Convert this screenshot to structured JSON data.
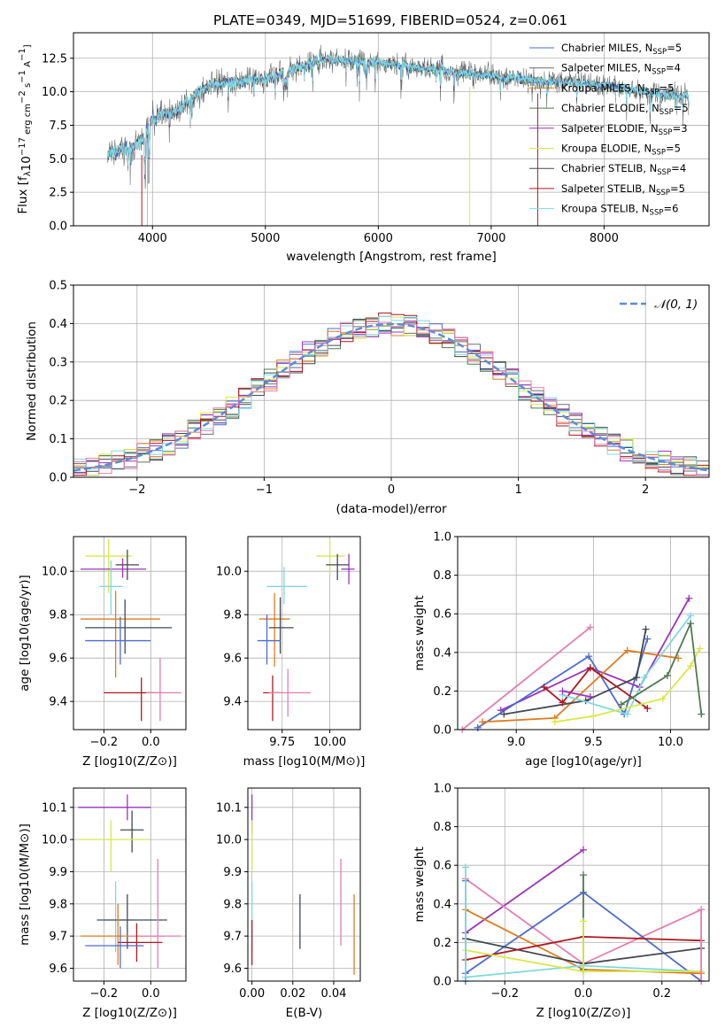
{
  "title": "PLATE=0349, MJD=51699, FIBERID=0524, z=0.061",
  "colors": {
    "Chabrier MILES": "#4c6bd0",
    "Salpeter MILES": "#6a6d70",
    "Kroupa MILES": "#e07b21",
    "Chabrier ELODIE": "#4f7a4f",
    "Salpeter ELODIE": "#9a34b8",
    "Kroupa ELODIE": "#d8e84a",
    "Chabrier STELIB": "#404a52",
    "Salpeter STELIB": "#b0171f",
    "Kroupa STELIB": "#7fd8e0",
    "pink": "#e27fb0",
    "gauss": "#5b8dd9"
  },
  "legend1": [
    {
      "name": "Chabrier MILES",
      "nssp": "5"
    },
    {
      "name": "Salpeter MILES",
      "nssp": "4"
    },
    {
      "name": "Kroupa MILES",
      "nssp": "5"
    },
    {
      "name": "Chabrier ELODIE",
      "nssp": "5"
    },
    {
      "name": "Salpeter ELODIE",
      "nssp": "3"
    },
    {
      "name": "Kroupa ELODIE",
      "nssp": "5"
    },
    {
      "name": "Chabrier STELIB",
      "nssp": "4"
    },
    {
      "name": "Salpeter STELIB",
      "nssp": "5"
    },
    {
      "name": "Kroupa STELIB",
      "nssp": "6"
    }
  ],
  "legend2": "𝒩(0, 1)",
  "chart_data": [
    {
      "type": "line",
      "id": "spectrum",
      "xlabel": "wavelength [Angstrom, rest frame]",
      "ylabel": "Flux [f_λ10^-17 erg cm^-2 s^-1 A^-1]",
      "xlim": [
        3300,
        8930
      ],
      "ylim": [
        0,
        14.4
      ],
      "xticks": [
        "4000",
        "5000",
        "6000",
        "7000",
        "8000"
      ],
      "yticks": [
        "0.0",
        "2.5",
        "5.0",
        "7.5",
        "10.0",
        "12.5"
      ],
      "continuum_anchors": [
        [
          3600,
          5.2
        ],
        [
          3900,
          6.2
        ],
        [
          4000,
          8.0
        ],
        [
          4200,
          8.5
        ],
        [
          4500,
          10.5
        ],
        [
          5000,
          11.0
        ],
        [
          5300,
          11.8
        ],
        [
          5500,
          12.4
        ],
        [
          6000,
          12.2
        ],
        [
          6500,
          11.6
        ],
        [
          7000,
          11.2
        ],
        [
          7500,
          10.8
        ],
        [
          8000,
          10.5
        ],
        [
          8500,
          9.8
        ],
        [
          8750,
          9.7
        ]
      ]
    },
    {
      "type": "area",
      "id": "residual-histogram",
      "xlabel": "(data-model)/error",
      "ylabel": "Normed distribution",
      "xlim": [
        -2.5,
        2.5
      ],
      "ylim": [
        0,
        0.5
      ],
      "xticks": [
        "−2",
        "−1",
        "0",
        "1",
        "2"
      ],
      "yticks": [
        "0.0",
        "0.1",
        "0.2",
        "0.3",
        "0.4",
        "0.5"
      ],
      "bin_width": 0.1,
      "series_name": "𝒩(0, 1)"
    },
    {
      "type": "scatter",
      "id": "age-vs-z",
      "xlabel": "Z [log10(Z/Z⊙)]",
      "ylabel": "age [log10(age/yr)]",
      "xlim": [
        -0.33,
        0.15
      ],
      "ylim": [
        9.27,
        10.16
      ],
      "xticks": [
        "−0.2",
        "0.0"
      ],
      "yticks": [
        "9.4",
        "9.6",
        "9.8",
        "10.0"
      ],
      "points": [
        {
          "c": "Kroupa ELODIE",
          "x": -0.18,
          "y": 10.07,
          "xl": -0.28,
          "xh": -0.08,
          "yl": 9.9,
          "yh": 10.15
        },
        {
          "c": "Salpeter ELODIE",
          "x": -0.12,
          "y": 10.01,
          "xl": -0.3,
          "xh": -0.02,
          "yl": 9.97,
          "yh": 10.06
        },
        {
          "c": "Chabrier STELIB",
          "x": -0.1,
          "y": 10.03,
          "xl": -0.15,
          "xh": -0.05,
          "yl": 9.96,
          "yh": 10.1
        },
        {
          "c": "Kroupa STELIB",
          "x": -0.17,
          "y": 9.93,
          "xl": -0.22,
          "xh": -0.12,
          "yl": 9.8,
          "yh": 10.05
        },
        {
          "c": "Kroupa MILES",
          "x": -0.15,
          "y": 9.78,
          "xl": -0.3,
          "xh": 0.04,
          "yl": 9.51,
          "yh": 9.91
        },
        {
          "c": "Chabrier STELIB",
          "x": -0.11,
          "y": 9.74,
          "xl": -0.28,
          "xh": 0.09,
          "yl": 9.62,
          "yh": 9.87
        },
        {
          "c": "Chabrier MILES",
          "x": -0.13,
          "y": 9.68,
          "xl": -0.28,
          "xh": 0.0,
          "yl": 9.57,
          "yh": 9.79
        },
        {
          "c": "Salpeter STELIB",
          "x": -0.04,
          "y": 9.44,
          "xl": -0.2,
          "xh": 0.05,
          "yl": 9.31,
          "yh": 9.51
        },
        {
          "c": "pink",
          "x": 0.04,
          "y": 9.44,
          "xl": -0.02,
          "xh": 0.13,
          "yl": 9.31,
          "yh": 9.6
        }
      ]
    },
    {
      "type": "scatter",
      "id": "age-vs-mass",
      "xlabel": "mass [log10(M/M⊙)]",
      "ylabel": "",
      "xlim": [
        9.57,
        10.16
      ],
      "ylim": [
        9.27,
        10.16
      ],
      "xticks": [
        "9.75",
        "10.00"
      ],
      "yticks": [
        "9.4",
        "9.6",
        "9.8",
        "10.0"
      ],
      "points": [
        {
          "c": "Kroupa ELODIE",
          "x": 10.0,
          "y": 10.07,
          "xl": 9.93,
          "xh": 10.08,
          "yl": 9.99,
          "yh": 10.15
        },
        {
          "c": "Salpeter ELODIE",
          "x": 10.1,
          "y": 10.01,
          "xl": 10.06,
          "xh": 10.13,
          "yl": 9.94,
          "yh": 10.08
        },
        {
          "c": "Chabrier STELIB",
          "x": 10.04,
          "y": 10.03,
          "xl": 9.98,
          "xh": 10.1,
          "yl": 9.96,
          "yh": 10.08
        },
        {
          "c": "Kroupa STELIB",
          "x": 9.76,
          "y": 9.93,
          "xl": 9.67,
          "xh": 9.88,
          "yl": 9.85,
          "yh": 10.02
        },
        {
          "c": "Kroupa MILES",
          "x": 9.71,
          "y": 9.78,
          "xl": 9.63,
          "xh": 9.79,
          "yl": 9.56,
          "yh": 9.9
        },
        {
          "c": "Chabrier STELIB",
          "x": 9.74,
          "y": 9.74,
          "xl": 9.68,
          "xh": 9.81,
          "yl": 9.62,
          "yh": 9.88
        },
        {
          "c": "Chabrier MILES",
          "x": 9.67,
          "y": 9.68,
          "xl": 9.62,
          "xh": 9.74,
          "yl": 9.57,
          "yh": 9.8
        },
        {
          "c": "Salpeter STELIB",
          "x": 9.7,
          "y": 9.44,
          "xl": 9.65,
          "xh": 9.75,
          "yl": 9.31,
          "yh": 9.52
        },
        {
          "c": "pink",
          "x": 9.78,
          "y": 9.44,
          "xl": 9.68,
          "xh": 9.9,
          "yl": 9.33,
          "yh": 9.55
        }
      ]
    },
    {
      "type": "line",
      "id": "massweight-vs-age",
      "xlabel": "age [log10(age/yr)]",
      "ylabel": "mass weight",
      "xlim": [
        8.62,
        10.25
      ],
      "ylim": [
        0,
        1.0
      ],
      "xticks": [
        "9.0",
        "9.5",
        "10.0"
      ],
      "yticks": [
        "0.0",
        "0.2",
        "0.4",
        "0.6",
        "0.8",
        "1.0"
      ],
      "series": [
        {
          "c": "pink",
          "x": [
            8.65,
            9.48
          ],
          "y": [
            0.0,
            0.53
          ]
        },
        {
          "c": "Salpeter ELODIE",
          "x": [
            8.9,
            9.48,
            9.8,
            10.12
          ],
          "y": [
            0.1,
            0.32,
            0.22,
            0.68
          ]
        },
        {
          "c": "Chabrier MILES",
          "x": [
            8.75,
            9.47,
            9.7,
            9.85
          ],
          "y": [
            0.01,
            0.38,
            0.08,
            0.47
          ]
        },
        {
          "c": "Kroupa MILES",
          "x": [
            8.78,
            9.25,
            9.72,
            10.05
          ],
          "y": [
            0.04,
            0.06,
            0.41,
            0.37
          ]
        },
        {
          "c": "Chabrier STELIB",
          "x": [
            8.92,
            9.45,
            9.78,
            9.84
          ],
          "y": [
            0.08,
            0.15,
            0.27,
            0.52
          ]
        },
        {
          "c": "Salpeter STELIB",
          "x": [
            9.18,
            9.3,
            9.48,
            9.85
          ],
          "y": [
            0.22,
            0.14,
            0.32,
            0.11
          ]
        },
        {
          "c": "Kroupa STELIB",
          "x": [
            9.3,
            9.72,
            9.83,
            10.13
          ],
          "y": [
            0.18,
            0.08,
            0.27,
            0.59
          ]
        },
        {
          "c": "Kroupa ELODIE",
          "x": [
            9.25,
            9.5,
            9.95,
            10.13,
            10.19
          ],
          "y": [
            0.04,
            0.07,
            0.16,
            0.33,
            0.42
          ]
        },
        {
          "c": "Chabrier ELODIE",
          "x": [
            9.68,
            9.98,
            10.13,
            10.2
          ],
          "y": [
            0.13,
            0.28,
            0.55,
            0.08
          ]
        },
        {
          "c": "Salpeter ELODIE",
          "x": [
            9.3,
            9.48
          ],
          "y": [
            0.2,
            0.17
          ]
        }
      ]
    },
    {
      "type": "scatter",
      "id": "mass-vs-z",
      "xlabel": "Z [log10(Z/Z⊙)]",
      "ylabel": "mass [log10(M/M⊙)]",
      "xlim": [
        -0.33,
        0.15
      ],
      "ylim": [
        9.56,
        10.16
      ],
      "xticks": [
        "−0.2",
        "0.0"
      ],
      "yticks": [
        "9.6",
        "9.7",
        "9.8",
        "9.9",
        "10.0",
        "10.1"
      ],
      "points": [
        {
          "c": "Salpeter ELODIE",
          "x": -0.1,
          "y": 10.1,
          "xl": -0.31,
          "xh": 0.0,
          "yl": 10.06,
          "yh": 10.14
        },
        {
          "c": "Chabrier STELIB",
          "x": -0.08,
          "y": 10.03,
          "xl": -0.13,
          "xh": -0.03,
          "yl": 9.96,
          "yh": 10.09
        },
        {
          "c": "Kroupa ELODIE",
          "x": -0.17,
          "y": 10.0,
          "xl": -0.31,
          "xh": -0.01,
          "yl": 9.9,
          "yh": 10.06
        },
        {
          "c": "Kroupa STELIB",
          "x": -0.15,
          "y": 9.75,
          "xl": -0.2,
          "xh": -0.08,
          "yl": 9.65,
          "yh": 9.87
        },
        {
          "c": "Chabrier STELIB",
          "x": -0.1,
          "y": 9.75,
          "xl": -0.23,
          "xh": 0.07,
          "yl": 9.66,
          "yh": 9.83
        },
        {
          "c": "Kroupa MILES",
          "x": -0.14,
          "y": 9.7,
          "xl": -0.3,
          "xh": 0.06,
          "yl": 9.61,
          "yh": 9.8
        },
        {
          "c": "pink",
          "x": 0.03,
          "y": 9.7,
          "xl": -0.1,
          "xh": 0.13,
          "yl": 9.6,
          "yh": 9.94
        },
        {
          "c": "Salpeter STELIB",
          "x": -0.06,
          "y": 9.68,
          "xl": -0.14,
          "xh": 0.05,
          "yl": 9.62,
          "yh": 9.74
        },
        {
          "c": "Chabrier MILES",
          "x": -0.13,
          "y": 9.67,
          "xl": -0.28,
          "xh": -0.03,
          "yl": 9.6,
          "yh": 9.73
        }
      ]
    },
    {
      "type": "scatter",
      "id": "mass-vs-ebv",
      "xlabel": "E(B-V)",
      "ylabel": "",
      "xlim": [
        -0.002,
        0.053
      ],
      "ylim": [
        9.56,
        10.16
      ],
      "xticks": [
        "0.00",
        "0.02",
        "0.04"
      ],
      "yticks": [
        "9.6",
        "9.7",
        "9.8",
        "9.9",
        "10.0",
        "10.1"
      ],
      "points": [
        {
          "c": "Salpeter ELODIE",
          "x": 0.0,
          "y": 10.1,
          "xl": 0.0,
          "xh": 0.0,
          "yl": 10.02,
          "yh": 10.14
        },
        {
          "c": "Kroupa ELODIE",
          "x": 0.0,
          "y": 10.0,
          "xl": 0.0,
          "xh": 0.0,
          "yl": 9.9,
          "yh": 10.06
        },
        {
          "c": "Kroupa STELIB",
          "x": 0.0,
          "y": 9.75,
          "xl": 0.0,
          "xh": 0.0,
          "yl": 9.65,
          "yh": 9.87
        },
        {
          "c": "Salpeter STELIB",
          "x": 0.0,
          "y": 9.68,
          "xl": 0.0,
          "xh": 0.0,
          "yl": 9.61,
          "yh": 9.75
        },
        {
          "c": "Chabrier STELIB",
          "x": 0.0235,
          "y": 9.75,
          "xl": 0.0235,
          "xh": 0.0235,
          "yl": 9.66,
          "yh": 9.83
        },
        {
          "c": "pink",
          "x": 0.0435,
          "y": 9.8,
          "xl": 0.0435,
          "xh": 0.0435,
          "yl": 9.67,
          "yh": 9.94
        },
        {
          "c": "Kroupa MILES",
          "x": 0.05,
          "y": 9.7,
          "xl": 0.05,
          "xh": 0.05,
          "yl": 9.58,
          "yh": 9.83
        }
      ]
    },
    {
      "type": "line",
      "id": "massweight-vs-z",
      "xlabel": "Z [log10(Z/Z⊙)]",
      "ylabel": "mass weight",
      "xlim": [
        -0.32,
        0.32
      ],
      "ylim": [
        0,
        1.0
      ],
      "xticks": [
        "−0.2",
        "0.0",
        "0.2"
      ],
      "yticks": [
        "0.0",
        "0.2",
        "0.4",
        "0.6",
        "0.8",
        "1.0"
      ],
      "series": [
        {
          "c": "Salpeter ELODIE",
          "x": [
            -0.3,
            0.0
          ],
          "y": [
            0.25,
            0.68
          ]
        },
        {
          "c": "pink",
          "x": [
            -0.3,
            0.0,
            0.3
          ],
          "y": [
            0.53,
            0.09,
            0.37
          ]
        },
        {
          "c": "Chabrier MILES",
          "x": [
            -0.3,
            0.0,
            0.3
          ],
          "y": [
            0.04,
            0.46,
            0.0
          ]
        },
        {
          "c": "Kroupa MILES",
          "x": [
            -0.3,
            0.0,
            0.3
          ],
          "y": [
            0.37,
            0.06,
            0.04
          ]
        },
        {
          "c": "Chabrier STELIB",
          "x": [
            -0.3,
            0.0,
            0.3
          ],
          "y": [
            0.22,
            0.09,
            0.17
          ]
        },
        {
          "c": "Salpeter STELIB",
          "x": [
            -0.3,
            0.0,
            0.3
          ],
          "y": [
            0.11,
            0.23,
            0.21
          ]
        },
        {
          "c": "Kroupa STELIB",
          "x": [
            -0.3,
            0.0,
            0.3
          ],
          "y": [
            0.02,
            0.08,
            0.05
          ]
        },
        {
          "c": "Kroupa ELODIE",
          "x": [
            -0.3,
            0.0,
            0.3
          ],
          "y": [
            0.16,
            0.05,
            0.05
          ]
        },
        {
          "c": "Chabrier ELODIE",
          "x": [
            0.0,
            0.0
          ],
          "y": [
            0.55,
            0.06
          ]
        },
        {
          "c": "Chabrier MILES",
          "x": [
            -0.3,
            -0.3
          ],
          "y": [
            0.52,
            0.0
          ]
        },
        {
          "c": "Kroupa STELIB",
          "x": [
            -0.3,
            -0.3
          ],
          "y": [
            0.59,
            0.02
          ]
        },
        {
          "c": "Kroupa ELODIE",
          "x": [
            0.0,
            0.0
          ],
          "y": [
            0.31,
            0.05
          ]
        },
        {
          "c": "pink",
          "x": [
            0.3,
            0.3
          ],
          "y": [
            0.37,
            0.0
          ]
        }
      ]
    }
  ]
}
